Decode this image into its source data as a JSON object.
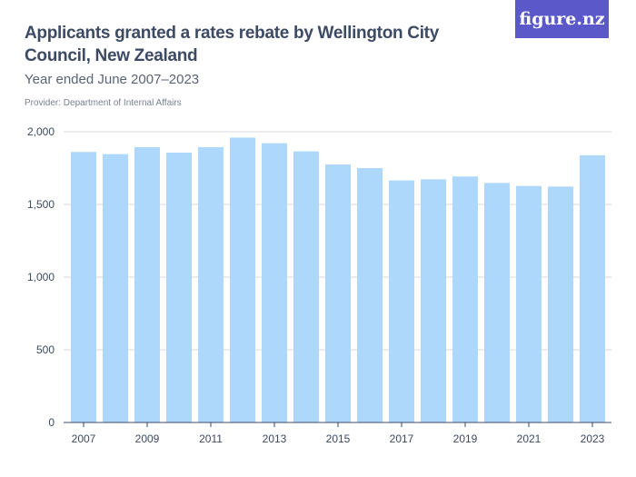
{
  "header": {
    "title": "Applicants granted a rates rebate by Wellington City Council, New Zealand",
    "subtitle": "Year ended June 2007–2023",
    "provider": "Provider: Department of Internal Affairs",
    "logo": "figure.nz"
  },
  "colors": {
    "bar": "#aed8fb",
    "logo_bg": "#5b59c9",
    "text": "#3d4a63"
  },
  "chart_data": {
    "type": "bar",
    "categories": [
      "2007",
      "2008",
      "2009",
      "2010",
      "2011",
      "2012",
      "2013",
      "2014",
      "2015",
      "2016",
      "2017",
      "2018",
      "2019",
      "2020",
      "2021",
      "2022",
      "2023"
    ],
    "values": [
      1861,
      1846,
      1894,
      1856,
      1894,
      1960,
      1921,
      1865,
      1775,
      1750,
      1665,
      1673,
      1692,
      1648,
      1627,
      1623,
      1838
    ],
    "xticks": [
      "2007",
      "2009",
      "2011",
      "2013",
      "2015",
      "2017",
      "2019",
      "2021",
      "2023"
    ],
    "yticks": [
      0,
      500,
      1000,
      1500,
      2000
    ],
    "ytick_labels": [
      "0",
      "500",
      "1,000",
      "1,500",
      "2,000"
    ],
    "ylim": [
      0,
      2000
    ],
    "grid": true
  }
}
